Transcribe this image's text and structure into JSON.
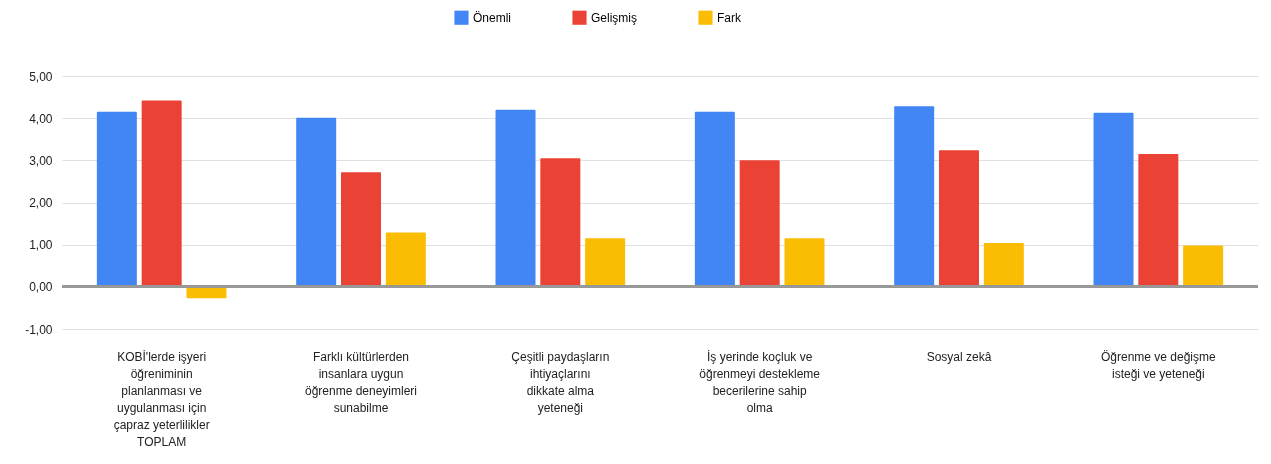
{
  "chart_data": {
    "type": "bar",
    "categories": [
      "KOBİ'lerde işyeri öğreniminin planlanması ve uygulanması için çapraz yeterlilikler TOPLAM",
      "Farklı kültürlerden insanlara uygun öğrenme deneyimleri sunabilme",
      "Çeşitli paydaşların ihtiyaçlarını dikkate alma yeteneği",
      "İş yerinde koçluk ve öğrenmeyi destekleme becerilerine sahip olma",
      "Sosyal zekâ",
      "Öğrenme ve değişme isteği ve yeteneği"
    ],
    "series": [
      {
        "name": "Önemli",
        "color": "#4285f4",
        "values": [
          4.15,
          4.01,
          4.2,
          4.15,
          4.28,
          4.13
        ]
      },
      {
        "name": "Gelişmiş",
        "color": "#ea4335",
        "values": [
          4.42,
          2.72,
          3.05,
          3.0,
          3.24,
          3.15
        ]
      },
      {
        "name": "Fark",
        "color": "#fbbc04",
        "values": [
          -0.27,
          1.29,
          1.15,
          1.15,
          1.04,
          0.98
        ]
      }
    ],
    "ylim": [
      -1,
      5
    ],
    "yticks": [
      {
        "value": -1,
        "label": "-1,00"
      },
      {
        "value": 0,
        "label": "0,00"
      },
      {
        "value": 1,
        "label": "1,00"
      },
      {
        "value": 2,
        "label": "2,00"
      },
      {
        "value": 3,
        "label": "3,00"
      },
      {
        "value": 4,
        "label": "4,00"
      },
      {
        "value": 5,
        "label": "5,00"
      }
    ],
    "grid": true,
    "legend": "top"
  }
}
